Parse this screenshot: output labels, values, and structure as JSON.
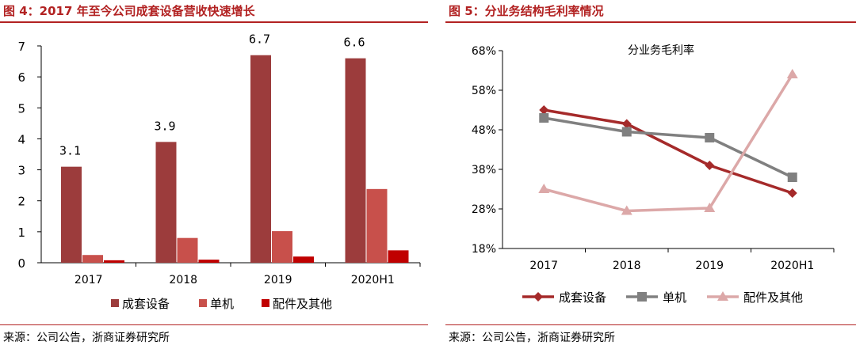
{
  "left": {
    "title": "图 4：2017 年至今公司成套设备营收快速增长",
    "source": "来源：公司公告，浙商证券研究所"
  },
  "right": {
    "title": "图 5：分业务结构毛利率情况",
    "source": "来源：公司公告，浙商证券研究所"
  },
  "colors": {
    "title_red": "#b22222",
    "bar_dark": "#9c3c3c",
    "bar_mid": "#c8504b",
    "bar_bright": "#c00000",
    "line_red": "#a52a2a",
    "line_gray": "#808080",
    "line_pink": "#dca8a8"
  },
  "chart_data": [
    {
      "type": "bar",
      "title": "",
      "categories": [
        "2017",
        "2018",
        "2019",
        "2020H1"
      ],
      "series": [
        {
          "name": "成套设备",
          "values": [
            3.1,
            3.9,
            6.7,
            6.6
          ]
        },
        {
          "name": "单机",
          "values": [
            0.25,
            0.8,
            1.02,
            2.38
          ]
        },
        {
          "name": "配件及其他",
          "values": [
            0.08,
            0.1,
            0.2,
            0.4
          ]
        }
      ],
      "data_labels": [
        "3.1",
        "3.9",
        "6.7",
        "6.6"
      ],
      "yticks": [
        "0",
        "1",
        "2",
        "3",
        "4",
        "5",
        "6",
        "7"
      ],
      "ylim": [
        0,
        7
      ],
      "xlabel": "",
      "ylabel": "",
      "legend": "bottom"
    },
    {
      "type": "line",
      "title": "分业务毛利率",
      "categories": [
        "2017",
        "2018",
        "2019",
        "2020H1"
      ],
      "series": [
        {
          "name": "成套设备",
          "values": [
            53,
            49.5,
            39,
            32
          ]
        },
        {
          "name": "单机",
          "values": [
            51,
            47.5,
            46,
            36
          ]
        },
        {
          "name": "配件及其他",
          "values": [
            33,
            27.5,
            28.2,
            62
          ]
        }
      ],
      "yticks": [
        "18%",
        "28%",
        "38%",
        "48%",
        "58%",
        "68%"
      ],
      "ylim": [
        18,
        68
      ],
      "xlabel": "",
      "ylabel": "",
      "legend": "bottom"
    }
  ]
}
